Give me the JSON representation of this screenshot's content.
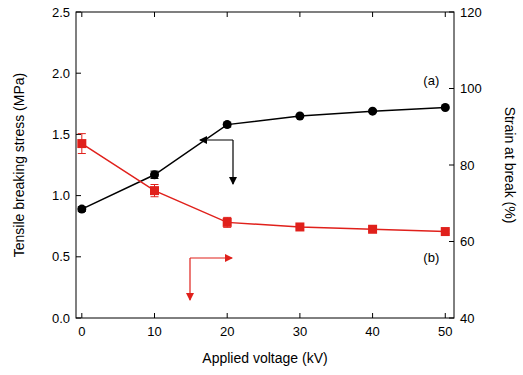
{
  "chart_data": {
    "type": "line",
    "x_label": "Applied voltage (kV)",
    "y_label": "Tensile breaking stress (MPa)",
    "y2_label": "Strain at break (%)",
    "x": [
      0,
      10,
      20,
      30,
      40,
      50
    ],
    "xlim": [
      -0.8,
      51.2
    ],
    "xticks": [
      0,
      10,
      20,
      30,
      40,
      50
    ],
    "ylim": [
      0,
      2.5
    ],
    "yticks": [
      {
        "value": 0,
        "label": "0.0"
      },
      0.5,
      {
        "value": 1,
        "label": "1.0"
      },
      1.5,
      {
        "value": 2,
        "label": "2.0"
      },
      2.5
    ],
    "y2lim": [
      40,
      120
    ],
    "y2ticks": [
      40,
      60,
      80,
      100,
      120
    ],
    "grid": false,
    "series": [
      {
        "name": "(a)",
        "color": "#000000",
        "marker": "circle",
        "line_style": "solid",
        "values": [
          0.89,
          1.17,
          1.58,
          1.65,
          1.69,
          1.72
        ],
        "error": [
          0.02,
          0.03,
          0.02,
          0.01,
          0.01,
          0.01
        ]
      },
      {
        "name": "(b)",
        "color": "#e0201b",
        "marker": "square",
        "line_style": "solid",
        "axis": "y2",
        "values": [
          85.6,
          73.3,
          65.0,
          63.8,
          63.2,
          62.6
        ],
        "error": [
          2.6,
          1.6,
          1.3,
          0.5,
          0.5,
          0.5
        ]
      }
    ]
  }
}
